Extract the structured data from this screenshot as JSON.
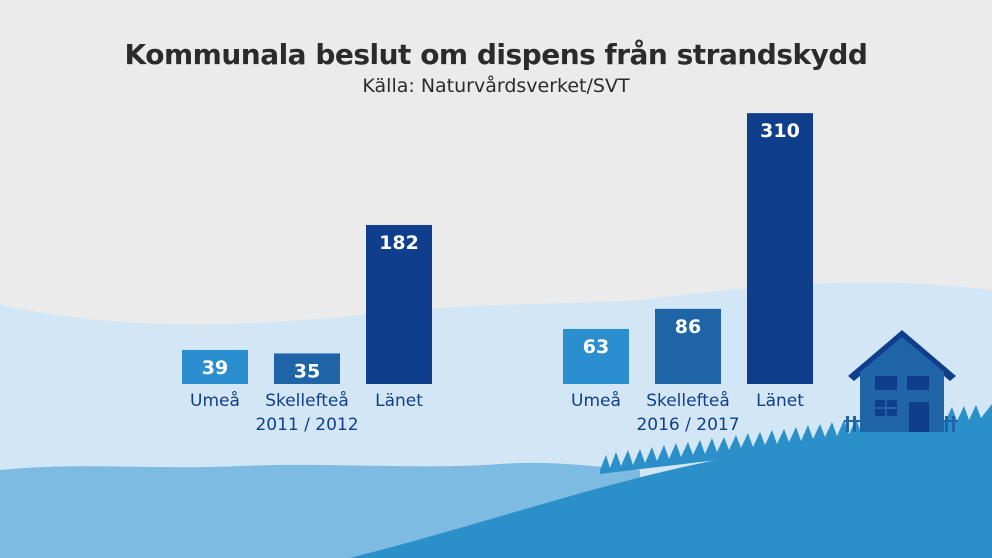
{
  "chart_data": {
    "type": "bar",
    "title": "Kommunala beslut om dispens från strandskydd",
    "subtitle": "Källa: Naturvårdsverket/SVT",
    "categories": [
      "Umeå",
      "Skellefteå",
      "Länet"
    ],
    "groups": [
      {
        "period": "2011 / 2012",
        "values": [
          39,
          35,
          182
        ]
      },
      {
        "period": "2016 / 2017",
        "values": [
          63,
          86,
          310
        ]
      }
    ],
    "colors": {
      "Umeå": "#2a8ecf",
      "Skellefteå": "#1e64a6",
      "Länet": "#0f3f8c",
      "value_label": "#ffffff",
      "axis_label": "#0f3f8c"
    }
  }
}
